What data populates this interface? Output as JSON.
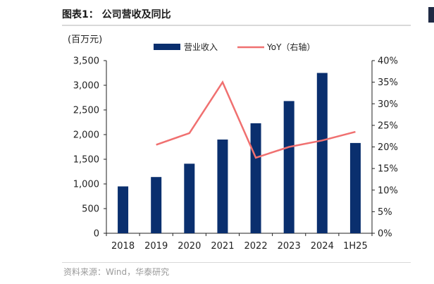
{
  "header": {
    "title": "图表1：  公司营收及同比"
  },
  "footer": {
    "source": "资料来源：Wind，华泰研究"
  },
  "colors": {
    "bar": "#0a2f6e",
    "line": "#f07070",
    "axis": "#222222"
  },
  "chart_data": {
    "type": "bar",
    "title": "公司营收及同比",
    "ylabel": "(百万元)",
    "categories": [
      "2018",
      "2019",
      "2020",
      "2021",
      "2022",
      "2023",
      "2024",
      "1H25"
    ],
    "series": [
      {
        "name": "营业收入",
        "axis": "left",
        "kind": "bar",
        "values": [
          950,
          1140,
          1410,
          1900,
          2230,
          2680,
          3250,
          1830
        ]
      },
      {
        "name": "YoY（右轴）",
        "axis": "right",
        "kind": "line",
        "values": [
          null,
          20.5,
          23.2,
          35.0,
          17.5,
          20.0,
          21.5,
          23.5
        ]
      }
    ],
    "ylim": [
      0,
      3500
    ],
    "y_ticks": [
      "0",
      "500",
      "1,000",
      "1,500",
      "2,000",
      "2,500",
      "3,000",
      "3,500"
    ],
    "y2lim": [
      0,
      40
    ],
    "y2_ticks": [
      "0%",
      "5%",
      "10%",
      "15%",
      "20%",
      "25%",
      "30%",
      "35%",
      "40%"
    ],
    "legend": {
      "bar_label": "营业收入",
      "line_label": "YoY（右轴）",
      "placement": "top"
    }
  }
}
